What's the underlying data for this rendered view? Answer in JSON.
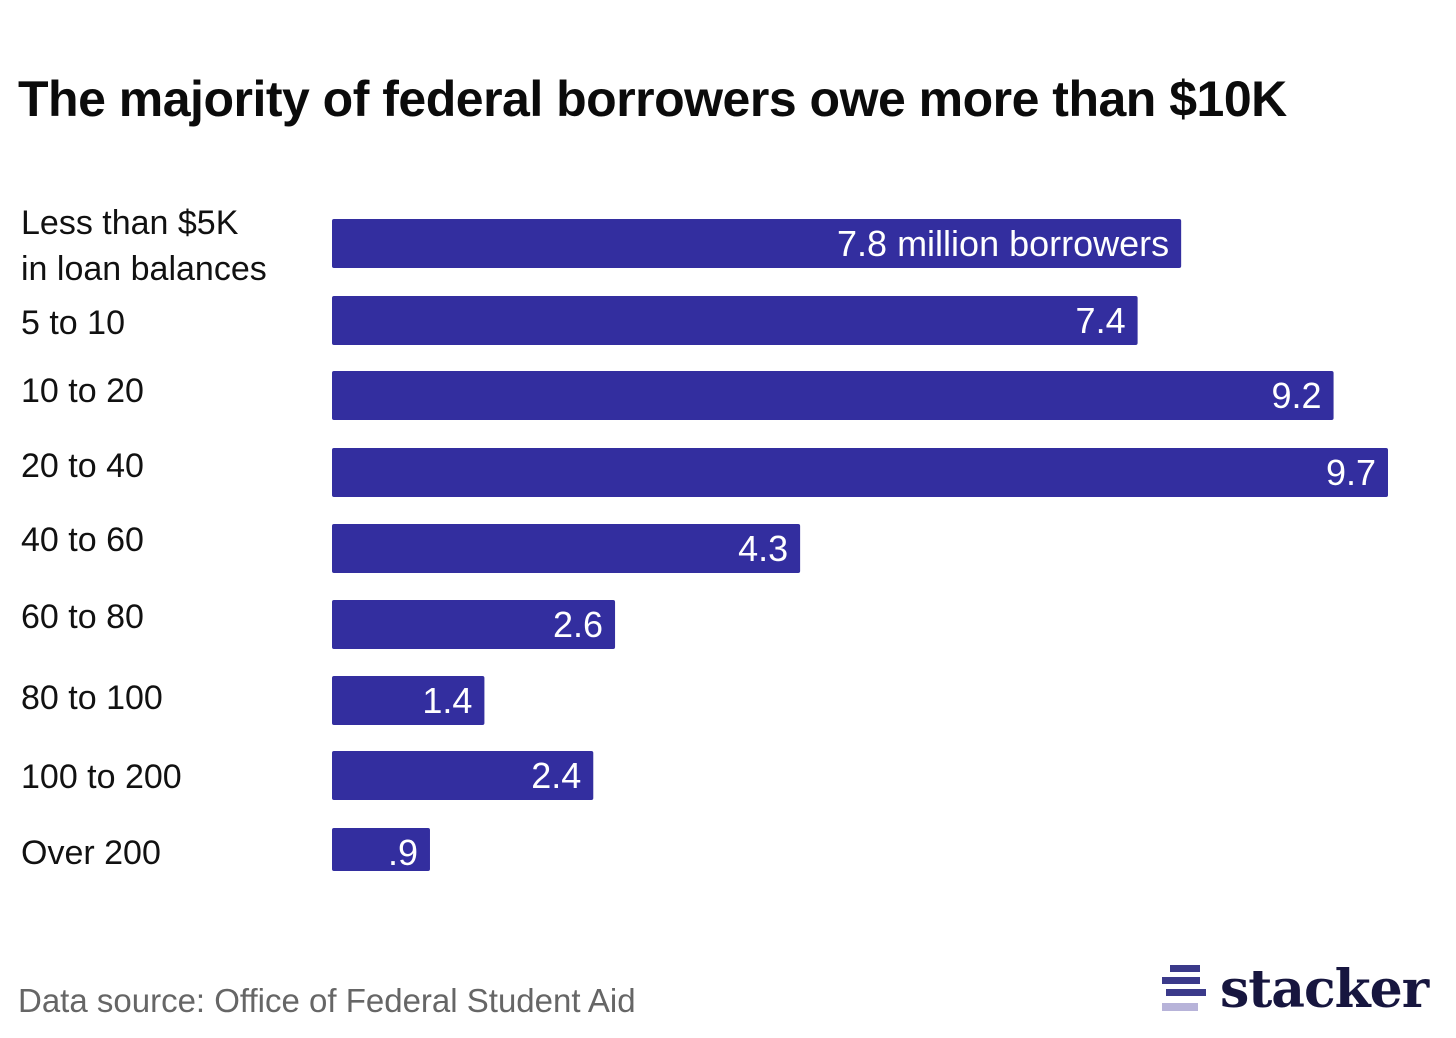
{
  "title": "The majority of federal borrowers owe more than $10K",
  "footer": {
    "source": "Data source: Office of Federal Student Aid",
    "brand": "stacker"
  },
  "colors": {
    "bar": "#332e9f",
    "label_in_bar": "#ffffff",
    "brand_mark": "#3b3a8a",
    "brand_mark_light": "#b7b3d9"
  },
  "chart_data": {
    "type": "bar",
    "orientation": "horizontal",
    "title": "The majority of federal borrowers owe more than $10K",
    "categories": [
      "Less than $5K\nin loan balances",
      "5 to 10",
      "10 to 20",
      "20 to 40",
      "40 to 60",
      "60 to 80",
      "80 to 100",
      "100 to 200",
      "Over 200"
    ],
    "values": [
      7.8,
      7.4,
      9.2,
      9.7,
      4.3,
      2.6,
      1.4,
      2.4,
      0.9
    ],
    "data_labels": [
      "7.8 million borrowers",
      "7.4",
      "9.2",
      "9.7",
      "4.3",
      "2.6",
      "1.4",
      "2.4",
      ".9"
    ],
    "xlim": [
      0,
      9.7
    ],
    "grid": false,
    "legend": "none"
  }
}
